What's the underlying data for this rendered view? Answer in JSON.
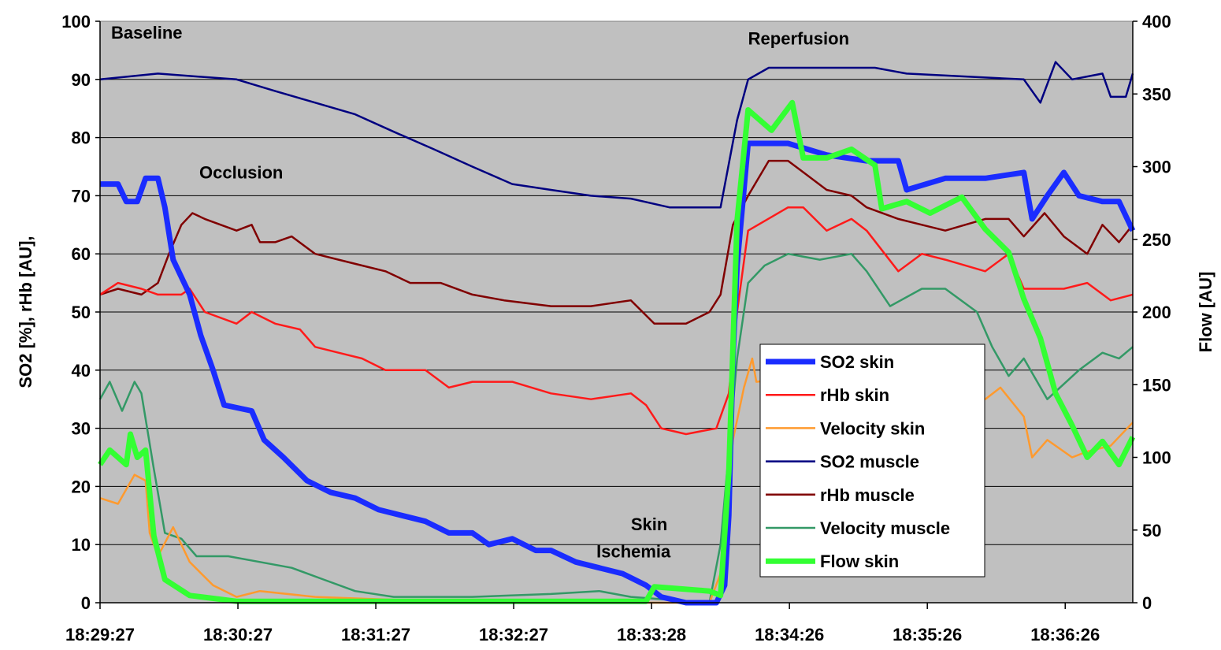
{
  "chart_data": {
    "type": "line",
    "title": "",
    "xlabel": "",
    "ylabel": "SO2 [%], rHb [AU],",
    "y2label": "Flow [AU]",
    "xlim": [
      0,
      7.49
    ],
    "ylim": [
      0,
      100
    ],
    "y2lim": [
      0,
      400
    ],
    "x_tick_labels": [
      "18:29:27",
      "18:30:27",
      "18:31:27",
      "18:32:27",
      "18:33:28",
      "18:34:26",
      "18:35:26",
      "18:36:26"
    ],
    "y_ticks": [
      0,
      10,
      20,
      30,
      40,
      50,
      60,
      70,
      80,
      90,
      100
    ],
    "y2_ticks": [
      0,
      50,
      100,
      150,
      200,
      250,
      300,
      350,
      400
    ],
    "grid": true,
    "legend_placement": "center-right",
    "annotations": [
      {
        "text": "Baseline",
        "x": 0.08,
        "y": 97
      },
      {
        "text": "Occlusion",
        "x": 0.72,
        "y": 73
      },
      {
        "text": "Skin",
        "x": 3.85,
        "y": 12.5
      },
      {
        "text": "Ischemia",
        "x": 3.6,
        "y": 7.8
      },
      {
        "text": "Reperfusion",
        "x": 4.7,
        "y": 96
      }
    ],
    "series": [
      {
        "name": "SO2 skin",
        "axis": "left",
        "color": "#1a2cff",
        "width": 7,
        "points": [
          [
            0,
            72
          ],
          [
            0.13,
            72
          ],
          [
            0.19,
            69
          ],
          [
            0.27,
            69
          ],
          [
            0.33,
            73
          ],
          [
            0.42,
            73
          ],
          [
            0.47,
            68
          ],
          [
            0.53,
            59
          ],
          [
            0.65,
            53
          ],
          [
            0.73,
            46
          ],
          [
            0.82,
            40
          ],
          [
            0.9,
            34
          ],
          [
            1.1,
            33
          ],
          [
            1.19,
            28
          ],
          [
            1.33,
            25
          ],
          [
            1.5,
            21
          ],
          [
            1.67,
            19
          ],
          [
            1.85,
            18
          ],
          [
            2.02,
            16
          ],
          [
            2.19,
            15
          ],
          [
            2.36,
            14
          ],
          [
            2.53,
            12
          ],
          [
            2.7,
            12
          ],
          [
            2.82,
            10
          ],
          [
            2.99,
            11
          ],
          [
            3.16,
            9
          ],
          [
            3.27,
            9
          ],
          [
            3.45,
            7
          ],
          [
            3.62,
            6
          ],
          [
            3.79,
            5
          ],
          [
            3.96,
            3
          ],
          [
            4.07,
            1
          ],
          [
            4.25,
            0
          ],
          [
            4.47,
            0
          ],
          [
            4.53,
            3
          ],
          [
            4.56,
            15
          ],
          [
            4.59,
            42
          ],
          [
            4.62,
            58
          ],
          [
            4.7,
            79
          ],
          [
            4.99,
            79
          ],
          [
            5.27,
            77
          ],
          [
            5.56,
            76
          ],
          [
            5.79,
            76
          ],
          [
            5.85,
            71
          ],
          [
            6.13,
            73
          ],
          [
            6.42,
            73
          ],
          [
            6.7,
            74
          ],
          [
            6.76,
            66
          ],
          [
            6.87,
            70
          ],
          [
            6.99,
            74
          ],
          [
            7.1,
            70
          ],
          [
            7.27,
            69
          ],
          [
            7.39,
            69
          ],
          [
            7.49,
            64
          ]
        ]
      },
      {
        "name": "rHb skin",
        "axis": "left",
        "color": "#ff1a1a",
        "width": 2.5,
        "points": [
          [
            0,
            53
          ],
          [
            0.13,
            55
          ],
          [
            0.3,
            54
          ],
          [
            0.42,
            53
          ],
          [
            0.59,
            53
          ],
          [
            0.65,
            54
          ],
          [
            0.76,
            50
          ],
          [
            0.99,
            48
          ],
          [
            1.1,
            50
          ],
          [
            1.27,
            48
          ],
          [
            1.45,
            47
          ],
          [
            1.56,
            44
          ],
          [
            1.73,
            43
          ],
          [
            1.9,
            42
          ],
          [
            2.07,
            40
          ],
          [
            2.19,
            40
          ],
          [
            2.36,
            40
          ],
          [
            2.53,
            37
          ],
          [
            2.7,
            38
          ],
          [
            2.99,
            38
          ],
          [
            3.27,
            36
          ],
          [
            3.56,
            35
          ],
          [
            3.85,
            36
          ],
          [
            3.96,
            34
          ],
          [
            4.07,
            30
          ],
          [
            4.25,
            29
          ],
          [
            4.47,
            30
          ],
          [
            4.56,
            36
          ],
          [
            4.62,
            50
          ],
          [
            4.7,
            64
          ],
          [
            4.99,
            68
          ],
          [
            5.1,
            68
          ],
          [
            5.27,
            64
          ],
          [
            5.45,
            66
          ],
          [
            5.56,
            64
          ],
          [
            5.79,
            57
          ],
          [
            5.96,
            60
          ],
          [
            6.13,
            59
          ],
          [
            6.42,
            57
          ],
          [
            6.59,
            60
          ],
          [
            6.7,
            54
          ],
          [
            6.99,
            54
          ],
          [
            7.16,
            55
          ],
          [
            7.33,
            52
          ],
          [
            7.49,
            53
          ]
        ]
      },
      {
        "name": "Velocity skin",
        "axis": "left",
        "color": "#ff9a2e",
        "width": 2.5,
        "points": [
          [
            0,
            18
          ],
          [
            0.13,
            17
          ],
          [
            0.25,
            22
          ],
          [
            0.33,
            21
          ],
          [
            0.36,
            12
          ],
          [
            0.42,
            8
          ],
          [
            0.53,
            13
          ],
          [
            0.65,
            7
          ],
          [
            0.82,
            3
          ],
          [
            0.99,
            1
          ],
          [
            1.16,
            2
          ],
          [
            1.56,
            1
          ],
          [
            2.13,
            0.5
          ],
          [
            2.7,
            0.5
          ],
          [
            3.27,
            0.5
          ],
          [
            3.85,
            0
          ],
          [
            4.42,
            0
          ],
          [
            4.5,
            5
          ],
          [
            4.59,
            28
          ],
          [
            4.67,
            37
          ],
          [
            4.73,
            42
          ],
          [
            4.76,
            38
          ],
          [
            5.5,
            40
          ],
          [
            6.42,
            35
          ],
          [
            6.53,
            37
          ],
          [
            6.7,
            32
          ],
          [
            6.76,
            25
          ],
          [
            6.87,
            28
          ],
          [
            7.05,
            25
          ],
          [
            7.16,
            26
          ],
          [
            7.33,
            27
          ],
          [
            7.49,
            31
          ]
        ]
      },
      {
        "name": "SO2 muscle",
        "axis": "left",
        "color": "#000080",
        "width": 2.5,
        "points": [
          [
            0,
            90
          ],
          [
            0.42,
            91
          ],
          [
            0.99,
            90
          ],
          [
            1.27,
            88
          ],
          [
            1.56,
            86
          ],
          [
            1.85,
            84
          ],
          [
            2.13,
            81
          ],
          [
            2.42,
            78
          ],
          [
            2.7,
            75
          ],
          [
            2.99,
            72
          ],
          [
            3.27,
            71
          ],
          [
            3.56,
            70
          ],
          [
            3.85,
            69.5
          ],
          [
            4.13,
            68
          ],
          [
            4.5,
            68
          ],
          [
            4.62,
            83
          ],
          [
            4.7,
            90
          ],
          [
            4.85,
            92
          ],
          [
            5.62,
            92
          ],
          [
            5.85,
            91
          ],
          [
            6.7,
            90
          ],
          [
            6.82,
            86
          ],
          [
            6.93,
            93
          ],
          [
            7.05,
            90
          ],
          [
            7.27,
            91
          ],
          [
            7.33,
            87
          ],
          [
            7.44,
            87
          ],
          [
            7.49,
            91
          ]
        ]
      },
      {
        "name": "rHb muscle",
        "axis": "left",
        "color": "#800000",
        "width": 2.5,
        "points": [
          [
            0,
            53
          ],
          [
            0.13,
            54
          ],
          [
            0.3,
            53
          ],
          [
            0.42,
            55
          ],
          [
            0.5,
            60
          ],
          [
            0.59,
            65
          ],
          [
            0.67,
            67
          ],
          [
            0.76,
            66
          ],
          [
            0.99,
            64
          ],
          [
            1.1,
            65
          ],
          [
            1.16,
            62
          ],
          [
            1.27,
            62
          ],
          [
            1.39,
            63
          ],
          [
            1.56,
            60
          ],
          [
            1.73,
            59
          ],
          [
            1.9,
            58
          ],
          [
            2.07,
            57
          ],
          [
            2.25,
            55
          ],
          [
            2.47,
            55
          ],
          [
            2.7,
            53
          ],
          [
            2.93,
            52
          ],
          [
            3.27,
            51
          ],
          [
            3.56,
            51
          ],
          [
            3.85,
            52
          ],
          [
            4.02,
            48
          ],
          [
            4.25,
            48
          ],
          [
            4.42,
            50
          ],
          [
            4.5,
            53
          ],
          [
            4.59,
            65
          ],
          [
            4.7,
            70
          ],
          [
            4.85,
            76
          ],
          [
            4.99,
            76
          ],
          [
            5.27,
            71
          ],
          [
            5.45,
            70
          ],
          [
            5.56,
            68
          ],
          [
            5.79,
            66
          ],
          [
            5.96,
            65
          ],
          [
            6.13,
            64
          ],
          [
            6.42,
            66
          ],
          [
            6.59,
            66
          ],
          [
            6.7,
            63
          ],
          [
            6.85,
            67
          ],
          [
            6.99,
            63
          ],
          [
            7.16,
            60
          ],
          [
            7.27,
            65
          ],
          [
            7.39,
            62
          ],
          [
            7.49,
            65
          ]
        ]
      },
      {
        "name": "Velocity muscle",
        "axis": "left",
        "color": "#339966",
        "width": 2.5,
        "points": [
          [
            0,
            35
          ],
          [
            0.07,
            38
          ],
          [
            0.16,
            33
          ],
          [
            0.25,
            38
          ],
          [
            0.3,
            36
          ],
          [
            0.39,
            23
          ],
          [
            0.47,
            12
          ],
          [
            0.59,
            11
          ],
          [
            0.7,
            8
          ],
          [
            0.93,
            8
          ],
          [
            1.16,
            7
          ],
          [
            1.39,
            6
          ],
          [
            1.62,
            4
          ],
          [
            1.85,
            2
          ],
          [
            2.13,
            1
          ],
          [
            2.7,
            1
          ],
          [
            3.27,
            1.5
          ],
          [
            3.62,
            2
          ],
          [
            3.85,
            1
          ],
          [
            4.13,
            0.5
          ],
          [
            4.42,
            0
          ],
          [
            4.5,
            10
          ],
          [
            4.62,
            42
          ],
          [
            4.7,
            55
          ],
          [
            4.82,
            58
          ],
          [
            4.99,
            60
          ],
          [
            5.22,
            59
          ],
          [
            5.45,
            60
          ],
          [
            5.56,
            57
          ],
          [
            5.73,
            51
          ],
          [
            5.96,
            54
          ],
          [
            6.13,
            54
          ],
          [
            6.36,
            50
          ],
          [
            6.47,
            44
          ],
          [
            6.59,
            39
          ],
          [
            6.7,
            42
          ],
          [
            6.87,
            35
          ],
          [
            7.1,
            40
          ],
          [
            7.27,
            43
          ],
          [
            7.39,
            42
          ],
          [
            7.49,
            44
          ]
        ]
      },
      {
        "name": "Flow skin",
        "axis": "right",
        "color": "#33ff33",
        "width": 7,
        "points": [
          [
            0,
            95
          ],
          [
            0.07,
            105
          ],
          [
            0.19,
            95
          ],
          [
            0.22,
            116
          ],
          [
            0.27,
            100
          ],
          [
            0.33,
            105
          ],
          [
            0.39,
            46
          ],
          [
            0.47,
            16
          ],
          [
            0.65,
            5
          ],
          [
            0.99,
            1
          ],
          [
            3.96,
            1
          ],
          [
            4.02,
            11
          ],
          [
            4.42,
            8
          ],
          [
            4.5,
            5
          ],
          [
            4.56,
            90
          ],
          [
            4.62,
            263
          ],
          [
            4.7,
            339
          ],
          [
            4.87,
            325
          ],
          [
            5.02,
            344
          ],
          [
            5.1,
            306
          ],
          [
            5.27,
            306
          ],
          [
            5.45,
            312
          ],
          [
            5.62,
            301
          ],
          [
            5.67,
            271
          ],
          [
            5.85,
            276
          ],
          [
            6.02,
            268
          ],
          [
            6.25,
            279
          ],
          [
            6.42,
            257
          ],
          [
            6.59,
            241
          ],
          [
            6.7,
            209
          ],
          [
            6.82,
            182
          ],
          [
            6.93,
            144
          ],
          [
            7.05,
            122
          ],
          [
            7.16,
            100
          ],
          [
            7.27,
            111
          ],
          [
            7.39,
            95
          ],
          [
            7.49,
            114
          ]
        ]
      }
    ]
  }
}
